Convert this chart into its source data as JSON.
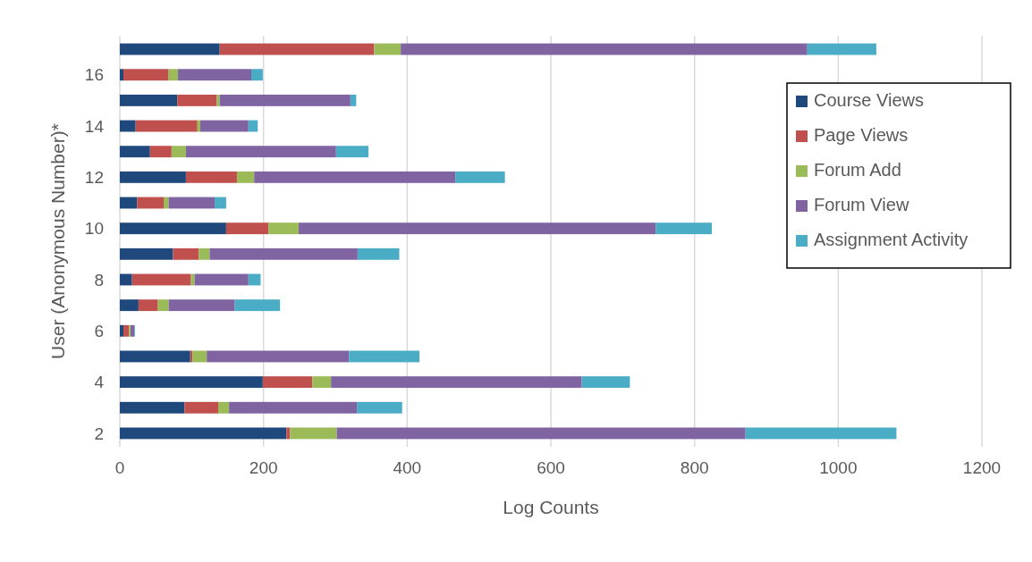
{
  "chart_data": {
    "type": "bar",
    "orientation": "horizontal",
    "stacked": true,
    "xlabel": "Log Counts",
    "ylabel": "User (Anonymous Number)*",
    "categories": [
      null,
      "16",
      null,
      "14",
      null,
      "12",
      null,
      "10",
      null,
      "8",
      null,
      "6",
      null,
      "4",
      null,
      "2"
    ],
    "series": [
      {
        "name": "Course Views",
        "color": "#1f497d",
        "values": [
          139,
          5,
          80,
          22,
          42,
          92,
          24,
          148,
          74,
          17,
          26,
          5,
          98,
          199,
          90,
          232
        ]
      },
      {
        "name": "Page Views",
        "color": "#c0504d",
        "values": [
          215,
          63,
          55,
          86,
          30,
          71,
          37,
          59,
          36,
          82,
          27,
          8,
          3,
          69,
          47,
          5
        ]
      },
      {
        "name": "Forum Add",
        "color": "#9bbb59",
        "values": [
          37,
          13,
          4,
          4,
          20,
          24,
          7,
          42,
          15,
          5,
          15,
          2,
          20,
          26,
          15,
          65
        ]
      },
      {
        "name": "Forum View",
        "color": "#8064a2",
        "values": [
          566,
          102,
          182,
          67,
          209,
          280,
          64,
          497,
          206,
          75,
          92,
          5,
          198,
          349,
          178,
          569
        ]
      },
      {
        "name": "Assignment Activity",
        "color": "#4bacc6",
        "values": [
          96,
          16,
          8,
          13,
          45,
          69,
          16,
          78,
          58,
          17,
          63,
          1,
          98,
          67,
          63,
          210
        ]
      }
    ],
    "xlim": [
      0,
      1200
    ],
    "xticks": [
      0,
      200,
      400,
      600,
      800,
      1000,
      1200
    ],
    "grid": "x",
    "legend": "top right"
  }
}
